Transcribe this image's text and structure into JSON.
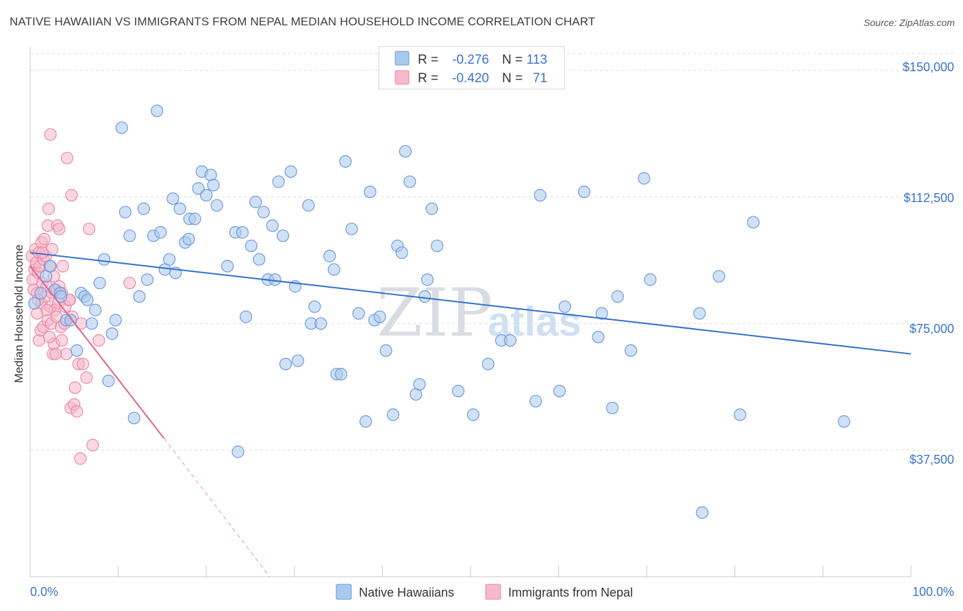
{
  "title": "NATIVE HAWAIIAN VS IMMIGRANTS FROM NEPAL MEDIAN HOUSEHOLD INCOME CORRELATION CHART",
  "source": "Source: ZipAtlas.com",
  "watermark": {
    "part1": "ZIP",
    "part2": "atlas"
  },
  "colors": {
    "blue_fill": "#a9c8ef",
    "blue_stroke": "#6f9ad8",
    "blue_line": "#2f6fce",
    "pink_fill": "#f6b8cb",
    "pink_stroke": "#e88aa8",
    "pink_line": "#e0608e",
    "axis_text": "#3a73c9",
    "grid": "#dddddd"
  },
  "legend": {
    "rows": [
      {
        "r_label": "R =",
        "r_value": "-0.276",
        "n_label": "N =",
        "n_value": "113",
        "color": "blue"
      },
      {
        "r_label": "R =",
        "r_value": "-0.420",
        "n_label": "N =",
        "n_value": "71",
        "color": "pink"
      }
    ]
  },
  "chart_data": {
    "type": "scatter",
    "title": "NATIVE HAWAIIAN VS IMMIGRANTS FROM NEPAL MEDIAN HOUSEHOLD INCOME CORRELATION CHART",
    "xlabel": "",
    "ylabel": "Median Household Income",
    "xlim": [
      0,
      100
    ],
    "ylim": [
      0,
      155000
    ],
    "x_tick_labels": [
      "0.0%",
      "100.0%"
    ],
    "y_ticks": [
      37500,
      75000,
      112500,
      150000
    ],
    "y_tick_labels": [
      "$37,500",
      "$75,000",
      "$112,500",
      "$150,000"
    ],
    "series": [
      {
        "name": "Native Hawaiians",
        "color": "blue",
        "R": -0.276,
        "N": 113,
        "trend": {
          "x0": 0,
          "y0": 96000,
          "x1": 100,
          "y1": 66000
        },
        "points": [
          [
            0.5,
            81000
          ],
          [
            1.2,
            84000
          ],
          [
            1.8,
            89000
          ],
          [
            2.3,
            92000
          ],
          [
            2.8,
            85000
          ],
          [
            3.4,
            84000
          ],
          [
            3.5,
            83000
          ],
          [
            4.1,
            76000
          ],
          [
            4.6,
            76000
          ],
          [
            5.3,
            67000
          ],
          [
            5.8,
            84000
          ],
          [
            6.2,
            83000
          ],
          [
            6.5,
            82000
          ],
          [
            7.0,
            75000
          ],
          [
            7.4,
            79000
          ],
          [
            7.9,
            87000
          ],
          [
            8.4,
            94000
          ],
          [
            8.9,
            58000
          ],
          [
            9.3,
            72000
          ],
          [
            9.7,
            76000
          ],
          [
            10.4,
            133000
          ],
          [
            10.8,
            108000
          ],
          [
            11.3,
            101000
          ],
          [
            11.8,
            47000
          ],
          [
            12.4,
            83000
          ],
          [
            12.9,
            109000
          ],
          [
            13.3,
            88000
          ],
          [
            14.0,
            101000
          ],
          [
            14.4,
            138000
          ],
          [
            14.8,
            102000
          ],
          [
            15.3,
            91000
          ],
          [
            15.8,
            94000
          ],
          [
            16.2,
            112000
          ],
          [
            16.5,
            90000
          ],
          [
            17.0,
            109000
          ],
          [
            17.6,
            99000
          ],
          [
            18.1,
            106000
          ],
          [
            18.7,
            106000
          ],
          [
            19.1,
            115000
          ],
          [
            19.5,
            120000
          ],
          [
            20.0,
            113000
          ],
          [
            20.5,
            119000
          ],
          [
            20.8,
            116000
          ],
          [
            21.2,
            110000
          ],
          [
            22.4,
            92000
          ],
          [
            23.3,
            102000
          ],
          [
            23.6,
            37000
          ],
          [
            24.1,
            102000
          ],
          [
            24.5,
            77000
          ],
          [
            25.1,
            98000
          ],
          [
            25.6,
            111000
          ],
          [
            26.0,
            94000
          ],
          [
            26.5,
            108000
          ],
          [
            27.0,
            88000
          ],
          [
            27.5,
            104000
          ],
          [
            27.8,
            88000
          ],
          [
            28.2,
            117000
          ],
          [
            28.7,
            101000
          ],
          [
            29.0,
            63000
          ],
          [
            29.6,
            120000
          ],
          [
            30.1,
            86000
          ],
          [
            30.4,
            64000
          ],
          [
            31.6,
            110000
          ],
          [
            31.9,
            75000
          ],
          [
            32.3,
            80000
          ],
          [
            33.0,
            75000
          ],
          [
            34.0,
            95000
          ],
          [
            34.5,
            91000
          ],
          [
            34.8,
            60000
          ],
          [
            35.3,
            60000
          ],
          [
            35.8,
            123000
          ],
          [
            36.5,
            103000
          ],
          [
            37.3,
            78000
          ],
          [
            38.1,
            46000
          ],
          [
            38.6,
            114000
          ],
          [
            39.1,
            76000
          ],
          [
            39.7,
            77000
          ],
          [
            40.4,
            67000
          ],
          [
            41.2,
            48000
          ],
          [
            41.7,
            98000
          ],
          [
            42.2,
            96000
          ],
          [
            42.6,
            126000
          ],
          [
            43.1,
            117000
          ],
          [
            43.8,
            54000
          ],
          [
            44.2,
            57000
          ],
          [
            44.8,
            83000
          ],
          [
            45.1,
            88000
          ],
          [
            45.6,
            109000
          ],
          [
            46.2,
            98000
          ],
          [
            48.6,
            55000
          ],
          [
            50.3,
            48000
          ],
          [
            52.0,
            63000
          ],
          [
            53.5,
            70000
          ],
          [
            54.5,
            70000
          ],
          [
            57.4,
            52000
          ],
          [
            57.9,
            113000
          ],
          [
            60.1,
            55000
          ],
          [
            60.7,
            80000
          ],
          [
            62.9,
            114000
          ],
          [
            64.5,
            71000
          ],
          [
            64.9,
            78000
          ],
          [
            66.1,
            50000
          ],
          [
            66.7,
            83000
          ],
          [
            68.2,
            67000
          ],
          [
            69.7,
            118000
          ],
          [
            70.4,
            88000
          ],
          [
            76.0,
            78000
          ],
          [
            76.3,
            19000
          ],
          [
            78.2,
            89000
          ],
          [
            80.6,
            48000
          ],
          [
            82.1,
            105000
          ],
          [
            92.4,
            46000
          ],
          [
            18.0,
            100000
          ]
        ]
      },
      {
        "name": "Immigrants from Nepal",
        "color": "pink",
        "R": -0.42,
        "N": 71,
        "trend": {
          "x0": 0,
          "y0": 92000,
          "x1": 15.2,
          "y1": 41000,
          "dashed_to": {
            "x": 27.2,
            "y": 0
          }
        },
        "points": [
          [
            0.2,
            95000
          ],
          [
            0.3,
            88000
          ],
          [
            0.4,
            85000
          ],
          [
            0.5,
            91000
          ],
          [
            0.6,
            97000
          ],
          [
            0.7,
            93000
          ],
          [
            0.8,
            78000
          ],
          [
            0.8,
            84000
          ],
          [
            0.9,
            90000
          ],
          [
            1.0,
            96000
          ],
          [
            1.0,
            70000
          ],
          [
            1.1,
            92000
          ],
          [
            1.2,
            73000
          ],
          [
            1.3,
            99000
          ],
          [
            1.3,
            81000
          ],
          [
            1.4,
            87000
          ],
          [
            1.5,
            94000
          ],
          [
            1.5,
            74000
          ],
          [
            1.6,
            100000
          ],
          [
            1.7,
            83000
          ],
          [
            1.8,
            95000
          ],
          [
            1.9,
            86000
          ],
          [
            2.0,
            104000
          ],
          [
            2.0,
            76000
          ],
          [
            2.1,
            109000
          ],
          [
            2.2,
            92000
          ],
          [
            2.3,
            80000
          ],
          [
            2.3,
            131000
          ],
          [
            2.4,
            75000
          ],
          [
            2.5,
            97000
          ],
          [
            2.5,
            84000
          ],
          [
            2.6,
            66000
          ],
          [
            2.7,
            89000
          ],
          [
            2.7,
            69000
          ],
          [
            2.8,
            79000
          ],
          [
            2.9,
            85000
          ],
          [
            3.0,
            77000
          ],
          [
            3.1,
            104000
          ],
          [
            3.2,
            81000
          ],
          [
            3.3,
            103000
          ],
          [
            3.3,
            86000
          ],
          [
            3.5,
            74000
          ],
          [
            3.6,
            70000
          ],
          [
            3.7,
            92000
          ],
          [
            3.9,
            75000
          ],
          [
            4.0,
            80000
          ],
          [
            4.1,
            66000
          ],
          [
            4.2,
            124000
          ],
          [
            4.4,
            82000
          ],
          [
            4.6,
            50000
          ],
          [
            4.7,
            113000
          ],
          [
            4.8,
            77000
          ],
          [
            5.0,
            51000
          ],
          [
            5.1,
            56000
          ],
          [
            5.3,
            49000
          ],
          [
            5.5,
            63000
          ],
          [
            5.7,
            35000
          ],
          [
            5.8,
            75000
          ],
          [
            6.0,
            63000
          ],
          [
            6.4,
            59000
          ],
          [
            6.7,
            103000
          ],
          [
            7.1,
            39000
          ],
          [
            7.8,
            70000
          ],
          [
            11.3,
            87000
          ],
          [
            1.4,
            96000
          ],
          [
            2.9,
            66000
          ],
          [
            3.6,
            84000
          ],
          [
            1.9,
            79000
          ],
          [
            2.2,
            71000
          ],
          [
            0.9,
            82000
          ],
          [
            4.5,
            82000
          ]
        ]
      }
    ]
  },
  "bottom_legend": {
    "items": [
      {
        "label": "Native Hawaiians",
        "color": "blue"
      },
      {
        "label": "Immigrants from Nepal",
        "color": "pink"
      }
    ]
  }
}
